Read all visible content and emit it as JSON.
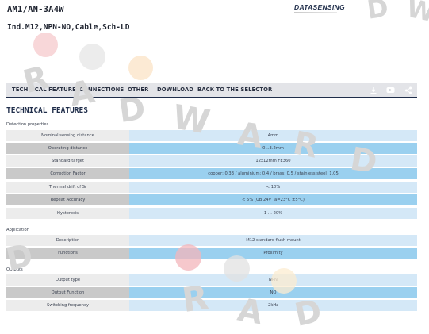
{
  "header": {
    "product_code": "AM1/AN-3A4W",
    "description": "Ind.M12,NPN-NO,Cable,Sch-LD",
    "logo_text": "DATASENSING"
  },
  "nav": {
    "items": [
      "TECHNICAL FEATURES",
      "CONNECTIONS",
      "OTHER",
      "DOWNLOAD",
      "BACK TO THE SELECTOR"
    ],
    "tools": [
      "download-icon",
      "video-icon",
      "share-icon"
    ]
  },
  "section_title": "TECHNICAL FEATURES",
  "groups": [
    {
      "title": "Detection properties",
      "rows": [
        {
          "label": "Nominal sensing distance",
          "value": "4mm"
        },
        {
          "label": "Operating distance",
          "value": "0…3.2mm"
        },
        {
          "label": "Standard target",
          "value": "12x12mm FE360"
        },
        {
          "label": "Correction Factor",
          "value": "copper: 0.33 / aluminium: 0.4 / brass: 0.5 / stainless steel: 1.05"
        },
        {
          "label": "Thermal drift of Sr",
          "value": "< 10%"
        },
        {
          "label": "Repeat Accuracy",
          "value": "< 5% (UB 24V Ta=23°C ±5°C)"
        },
        {
          "label": "Hysteresis",
          "value": "1 … 20%"
        }
      ]
    },
    {
      "title": "Application",
      "rows": [
        {
          "label": "Description",
          "value": "M12 standard flush mount"
        },
        {
          "label": "Functions",
          "value": "Proximity"
        }
      ]
    },
    {
      "title": "Outputs",
      "rows": [
        {
          "label": "Output type",
          "value": "NPN"
        },
        {
          "label": "Output Function",
          "value": "NO"
        },
        {
          "label": "Switching frequency",
          "value": "2kHz"
        }
      ]
    }
  ],
  "watermark": {
    "text": "RADWARD",
    "color": "#d6d6d6",
    "dots": [
      "#f6c9cc",
      "#e5e5e5",
      "#fbe3c5",
      "#f3b6bb",
      "#e2e2e2",
      "#fcecd0"
    ]
  }
}
